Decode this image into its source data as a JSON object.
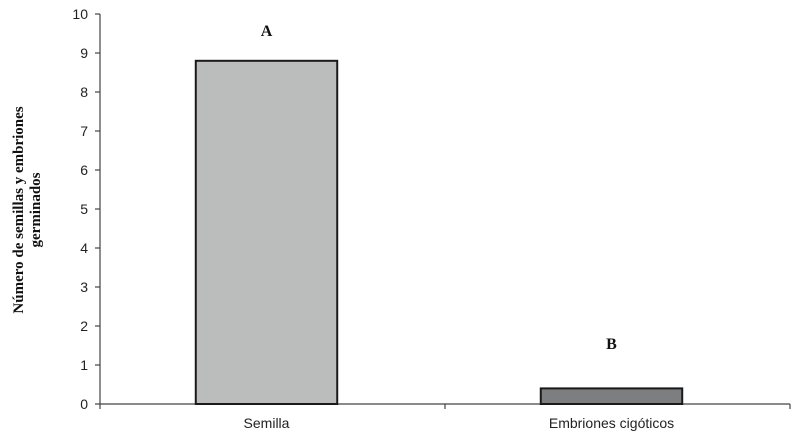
{
  "chart_data": {
    "type": "bar",
    "categories": [
      "Semilla",
      "Embriones cigóticos"
    ],
    "values": [
      8.8,
      0.4
    ],
    "annotations": [
      "A",
      "B"
    ],
    "ylabel_lines": [
      "Número de semillas y embriones",
      "germinados"
    ],
    "xlabel": "",
    "ylim": [
      0,
      10
    ],
    "yticks": [
      0,
      1,
      2,
      3,
      4,
      5,
      6,
      7,
      8,
      9,
      10
    ],
    "grid": false,
    "colors": {
      "bars": [
        "#bbbdbd",
        "#7d7e80"
      ],
      "bar_stroke": "#1a1a1a",
      "axis": "#444444"
    }
  }
}
